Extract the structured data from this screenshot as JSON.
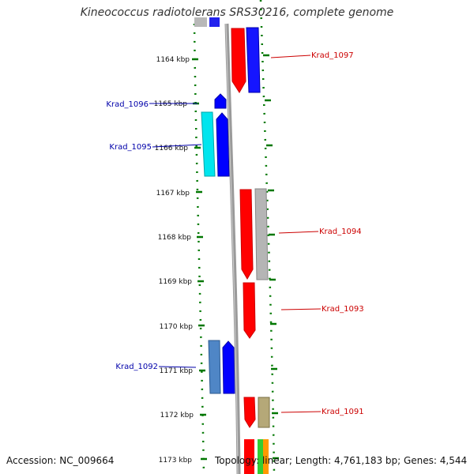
{
  "title": "Kineococcus radiotolerans SRS30216, complete genome",
  "footer": {
    "accession": "Accession: NC_009664",
    "topology": "Topology: linear; Length: 4,761,183 bp; Genes: 4,544"
  },
  "kbp_ticks": [
    "1164 kbp",
    "1165 kbp",
    "1166 kbp",
    "1167 kbp",
    "1168 kbp",
    "1169 kbp",
    "1170 kbp",
    "1171 kbp",
    "1172 kbp",
    "1173 kbp"
  ],
  "genes": [
    {
      "label": "Krad_1097",
      "color": "#cc0000",
      "strand": "reverse"
    },
    {
      "label": "Krad_1096",
      "color": "#0000aa",
      "strand": "forward"
    },
    {
      "label": "Krad_1095",
      "color": "#0000aa",
      "strand": "forward"
    },
    {
      "label": "Krad_1094",
      "color": "#cc0000",
      "strand": "reverse"
    },
    {
      "label": "Krad_1093",
      "color": "#cc0000",
      "strand": "reverse"
    },
    {
      "label": "Krad_1092",
      "color": "#0000aa",
      "strand": "forward"
    },
    {
      "label": "Krad_1091",
      "color": "#cc0000",
      "strand": "reverse"
    }
  ],
  "colors": {
    "dna": "#808080",
    "tick": "#007700",
    "forward": "#0000ff",
    "reverse": "#ff0000"
  }
}
